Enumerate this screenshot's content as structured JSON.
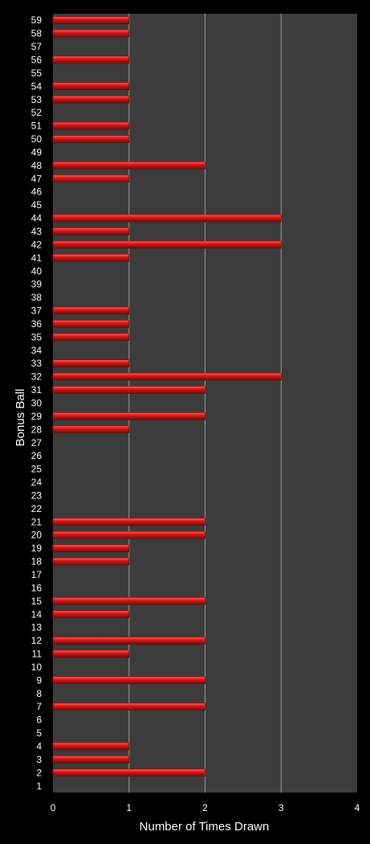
{
  "chart_data": {
    "type": "bar",
    "orientation": "horizontal",
    "categories": [
      "1",
      "2",
      "3",
      "4",
      "5",
      "6",
      "7",
      "8",
      "9",
      "10",
      "11",
      "12",
      "13",
      "14",
      "15",
      "16",
      "17",
      "18",
      "19",
      "20",
      "21",
      "22",
      "23",
      "24",
      "25",
      "26",
      "27",
      "28",
      "29",
      "30",
      "31",
      "32",
      "33",
      "34",
      "35",
      "36",
      "37",
      "38",
      "39",
      "40",
      "41",
      "42",
      "43",
      "44",
      "45",
      "46",
      "47",
      "48",
      "49",
      "50",
      "51",
      "52",
      "53",
      "54",
      "55",
      "56",
      "57",
      "58",
      "59"
    ],
    "values": [
      0,
      2,
      1,
      1,
      0,
      0,
      2,
      0,
      2,
      0,
      1,
      2,
      0,
      1,
      2,
      0,
      0,
      1,
      1,
      2,
      2,
      0,
      0,
      0,
      0,
      0,
      0,
      1,
      2,
      0,
      2,
      3,
      1,
      0,
      1,
      1,
      1,
      0,
      0,
      0,
      1,
      3,
      1,
      3,
      0,
      0,
      1,
      2,
      0,
      1,
      1,
      0,
      1,
      1,
      0,
      1,
      0,
      1,
      1
    ],
    "xlabel": "Number of Times Drawn",
    "ylabel": "Bonus Ball",
    "xlim": [
      0,
      4
    ],
    "xticks": [
      "0",
      "1",
      "2",
      "3",
      "4"
    ],
    "grid": "vertical",
    "legend": "none",
    "colors": {
      "background": "#000000",
      "plot_area": "#3c3c3c",
      "bar": "#e01818",
      "bar_highlight": "#ff6a6a",
      "bar_shadow": "#7a0808",
      "gridline": "#9a9a9a",
      "text": "#ffffff"
    }
  }
}
